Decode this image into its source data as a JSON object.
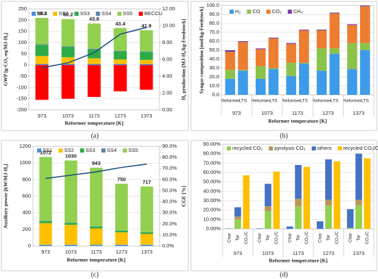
{
  "chart_data": [
    {
      "type": "bar",
      "caption": "(a)",
      "x_label": "Reformer temperature [K]",
      "y_label": "GWP [g-CO₂-eq/MJ-H₂]",
      "y2_label": "H₂ production [MJ-H₂/kg-Feedstock]",
      "categories": [
        "973",
        "1073",
        "1173",
        "1273",
        "1373"
      ],
      "series": [
        {
          "name": "SS1",
          "color": "#4a90d9",
          "values": [
            5,
            5,
            5,
            5,
            5
          ]
        },
        {
          "name": "SS2",
          "color": "#ffc000",
          "values": [
            35,
            30,
            25,
            20,
            18
          ]
        },
        {
          "name": "SS3",
          "color": "#2eab47",
          "values": [
            50,
            45,
            40,
            35,
            35
          ]
        },
        {
          "name": "SS4",
          "color": "#5b7fa8",
          "values": [
            3,
            3,
            3,
            3,
            3
          ]
        },
        {
          "name": "SS5",
          "color": "#92d050",
          "values": [
            117,
            122,
            112,
            102,
            94
          ]
        },
        {
          "name": "BECCU",
          "color": "#ff0000",
          "values": [
            -155,
            -150,
            -142,
            -117,
            -110
          ]
        },
        {
          "type": "line",
          "axis": "y2",
          "color": "#1f4e79",
          "values": [
            5.0,
            5.6,
            6.8,
            9.0,
            9.8
          ]
        }
      ],
      "totals": [
        59.3,
        50.2,
        43.8,
        43.4,
        41.9
      ],
      "ylim": [
        -200,
        250
      ],
      "yticks": [
        -200,
        -150,
        -100,
        -50,
        0,
        50,
        100,
        150,
        200,
        250
      ],
      "y2lim": [
        0,
        12
      ],
      "y2ticks": [
        {
          "value": 0,
          "label": "0.00"
        },
        {
          "value": 2,
          "label": "2.00"
        },
        {
          "value": 4,
          "label": "4.00"
        },
        {
          "value": 6,
          "label": "6.00"
        },
        {
          "value": 8,
          "label": "8.00"
        },
        {
          "value": 10,
          "label": "10.00"
        },
        {
          "value": 12,
          "label": "12.00"
        }
      ],
      "grid": true
    },
    {
      "type": "bar",
      "caption": "(b)",
      "x_label": "Reformer temperature [K]",
      "y_label": "Syngas composition [mol/kg-Feedstock]",
      "groups": [
        "973",
        "1073",
        "1173",
        "1273",
        "1373"
      ],
      "categories": [
        "Reformer",
        "LTS",
        "Reformer",
        "LTS",
        "Reformer",
        "LTS",
        "Reformer",
        "LTS",
        "Reformer",
        "LTS"
      ],
      "series": [
        {
          "name": "H₂",
          "color": "#3d9be9",
          "values": [
            18,
            27,
            18,
            29,
            21,
            35,
            27,
            46,
            29,
            50
          ]
        },
        {
          "name": "CO",
          "color": "#8bc34a",
          "values": [
            10,
            1,
            14,
            1,
            15,
            1,
            25,
            6,
            29,
            8
          ]
        },
        {
          "name": "CO₂",
          "color": "#ed7d31",
          "values": [
            20,
            31,
            19,
            33,
            21,
            36,
            20,
            39,
            20,
            41
          ]
        },
        {
          "name": "CH₄",
          "color": "#7b3f9e",
          "values": [
            2,
            1,
            1,
            1,
            1,
            1,
            1,
            1,
            1,
            1
          ]
        }
      ],
      "ylim": [
        0,
        100
      ],
      "yticks": [
        {
          "value": 0,
          "label": "0.0"
        },
        {
          "value": 10,
          "label": "10.0"
        },
        {
          "value": 20,
          "label": "20.0"
        },
        {
          "value": 30,
          "label": "30.0"
        },
        {
          "value": 40,
          "label": "40.0"
        },
        {
          "value": 50,
          "label": "50.0"
        },
        {
          "value": 60,
          "label": "60.0"
        },
        {
          "value": 70,
          "label": "70.0"
        },
        {
          "value": 80,
          "label": "80.0"
        },
        {
          "value": 90,
          "label": "90.0"
        },
        {
          "value": 100,
          "label": "100.0"
        }
      ],
      "grid": true
    },
    {
      "type": "bar",
      "caption": "(c)",
      "x_label": "Reformer temperature [K]",
      "y_label": "Auxiliary power [kW/MJ-H₂]",
      "y2_label": "CGE [%]",
      "categories": [
        "973",
        "1073",
        "1173",
        "1273",
        "1373"
      ],
      "series": [
        {
          "name": "SS1",
          "color": "#4a90d9",
          "values": [
            15,
            15,
            15,
            15,
            15
          ]
        },
        {
          "name": "SS2",
          "color": "#ffc000",
          "values": [
            260,
            240,
            195,
            150,
            130
          ]
        },
        {
          "name": "SS3",
          "color": "#2eab47",
          "values": [
            25,
            25,
            25,
            20,
            20
          ]
        },
        {
          "name": "SS4",
          "color": "#5b7fa8",
          "values": [
            2,
            2,
            2,
            2,
            2
          ]
        },
        {
          "name": "SS5",
          "color": "#92d050",
          "values": [
            770,
            748,
            706,
            563,
            550
          ]
        },
        {
          "type": "line",
          "axis": "y2",
          "color": "#1f4e79",
          "values": [
            61,
            64,
            67,
            71,
            74
          ]
        }
      ],
      "totals": [
        1072,
        1030,
        943,
        750,
        717
      ],
      "ylim": [
        0,
        1200
      ],
      "yticks": [
        0,
        200,
        400,
        600,
        800,
        1000,
        1200
      ],
      "y2lim": [
        0,
        90
      ],
      "y2ticks": [
        {
          "value": 0,
          "label": "0.0%"
        },
        {
          "value": 10,
          "label": "10.0%"
        },
        {
          "value": 20,
          "label": "20.0%"
        },
        {
          "value": 30,
          "label": "30.0%"
        },
        {
          "value": 40,
          "label": "40.0%"
        },
        {
          "value": 50,
          "label": "50.0%"
        },
        {
          "value": 60,
          "label": "60.0%"
        },
        {
          "value": 70,
          "label": "70.0%"
        },
        {
          "value": 80,
          "label": "80.0%"
        },
        {
          "value": 90,
          "label": "90.0%"
        }
      ],
      "grid": true
    },
    {
      "type": "bar",
      "caption": "(d)",
      "x_label": "Reformer temperature [K]",
      "groups": [
        "973",
        "1073",
        "1173",
        "1273",
        "1373"
      ],
      "categories": [
        "Char",
        "Tar",
        "CO₂/C",
        "Char",
        "Tar",
        "CO₂/C",
        "Char",
        "Tar",
        "CO₂/C",
        "Char",
        "Tar",
        "CO₂/C",
        "Char",
        "Tar",
        "CO₂/C"
      ],
      "series": [
        {
          "name": "recycled CO₂",
          "color": "#92d050",
          "values": [
            0,
            10,
            null,
            0,
            19,
            null,
            0,
            24,
            null,
            0,
            25,
            null,
            1,
            25,
            null
          ]
        },
        {
          "name": "pyrolysis CO₂",
          "color": "#b8955a",
          "values": [
            0,
            3,
            null,
            0,
            5,
            null,
            0,
            8,
            null,
            0,
            6,
            null,
            0,
            6,
            null
          ]
        },
        {
          "name": "others",
          "color": "#4472c4",
          "values": [
            0.3,
            10,
            null,
            0.5,
            24,
            null,
            2.5,
            36,
            null,
            8,
            43,
            null,
            20,
            49,
            null
          ]
        },
        {
          "name": "recycled CO₂/C",
          "color": "#ffc000",
          "values": [
            null,
            null,
            57,
            null,
            null,
            61,
            null,
            null,
            66,
            null,
            null,
            72,
            null,
            null,
            75
          ]
        }
      ],
      "ylim": [
        0,
        90
      ],
      "yticks": [
        {
          "value": 0,
          "label": "0.00%"
        },
        {
          "value": 10,
          "label": "10.00%"
        },
        {
          "value": 20,
          "label": "20.00%"
        },
        {
          "value": 30,
          "label": "30.00%"
        },
        {
          "value": 40,
          "label": "40.00%"
        },
        {
          "value": 50,
          "label": "50.00%"
        },
        {
          "value": 60,
          "label": "60.00%"
        },
        {
          "value": 70,
          "label": "70.00%"
        },
        {
          "value": 80,
          "label": "80.00%"
        },
        {
          "value": 90,
          "label": "90.00%"
        }
      ],
      "grid": true
    }
  ]
}
